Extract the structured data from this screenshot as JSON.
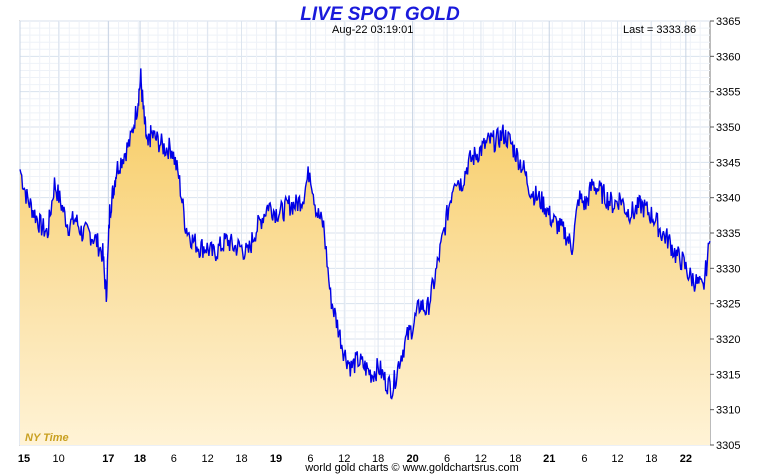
{
  "chart_data": {
    "type": "area",
    "title": "LIVE SPOT GOLD",
    "timestamp": "Aug-22  03:19:01",
    "last_label": "Last = 3333.86",
    "timezone_label": "NY Time",
    "footer": "world gold charts © www.goldchartsrus.com",
    "ylim": [
      3305,
      3365
    ],
    "y_ticks": [
      3305,
      3310,
      3315,
      3320,
      3325,
      3330,
      3335,
      3340,
      3345,
      3350,
      3355,
      3360,
      3365
    ],
    "x_ticks": [
      {
        "label": "15",
        "pos": 0.0,
        "bold": true
      },
      {
        "label": "10",
        "pos": 0.056,
        "bold": false
      },
      {
        "label": "17",
        "pos": 0.128,
        "bold": true
      },
      {
        "label": "18",
        "pos": 0.174,
        "bold": true
      },
      {
        "label": "6",
        "pos": 0.223,
        "bold": false
      },
      {
        "label": "12",
        "pos": 0.272,
        "bold": false
      },
      {
        "label": "18",
        "pos": 0.321,
        "bold": false
      },
      {
        "label": "19",
        "pos": 0.371,
        "bold": true
      },
      {
        "label": "6",
        "pos": 0.421,
        "bold": false
      },
      {
        "label": "12",
        "pos": 0.47,
        "bold": false
      },
      {
        "label": "18",
        "pos": 0.519,
        "bold": false
      },
      {
        "label": "20",
        "pos": 0.569,
        "bold": true
      },
      {
        "label": "6",
        "pos": 0.619,
        "bold": false
      },
      {
        "label": "12",
        "pos": 0.668,
        "bold": false
      },
      {
        "label": "18",
        "pos": 0.718,
        "bold": false
      },
      {
        "label": "21",
        "pos": 0.767,
        "bold": true
      },
      {
        "label": "6",
        "pos": 0.818,
        "bold": false
      },
      {
        "label": "12",
        "pos": 0.866,
        "bold": false
      },
      {
        "label": "18",
        "pos": 0.915,
        "bold": false
      },
      {
        "label": "22",
        "pos": 0.965,
        "bold": true
      }
    ],
    "series": [
      {
        "name": "Spot Gold",
        "x": [
          0.0,
          0.01,
          0.02,
          0.03,
          0.04,
          0.05,
          0.06,
          0.07,
          0.08,
          0.09,
          0.1,
          0.11,
          0.12,
          0.125,
          0.13,
          0.135,
          0.14,
          0.15,
          0.16,
          0.17,
          0.175,
          0.18,
          0.185,
          0.19,
          0.2,
          0.21,
          0.22,
          0.23,
          0.24,
          0.25,
          0.26,
          0.27,
          0.28,
          0.29,
          0.3,
          0.31,
          0.32,
          0.33,
          0.34,
          0.35,
          0.36,
          0.37,
          0.38,
          0.39,
          0.4,
          0.41,
          0.42,
          0.43,
          0.44,
          0.45,
          0.46,
          0.47,
          0.48,
          0.49,
          0.5,
          0.51,
          0.52,
          0.53,
          0.54,
          0.55,
          0.56,
          0.57,
          0.58,
          0.59,
          0.6,
          0.61,
          0.62,
          0.63,
          0.64,
          0.65,
          0.66,
          0.67,
          0.68,
          0.69,
          0.7,
          0.71,
          0.72,
          0.73,
          0.74,
          0.75,
          0.76,
          0.77,
          0.78,
          0.79,
          0.8,
          0.81,
          0.82,
          0.83,
          0.84,
          0.85,
          0.86,
          0.87,
          0.88,
          0.89,
          0.9,
          0.91,
          0.92,
          0.93,
          0.94,
          0.95,
          0.96,
          0.97,
          0.98,
          0.99,
          1.0
        ],
        "values": [
          3344,
          3340,
          3338,
          3336,
          3335,
          3342,
          3339,
          3336,
          3337,
          3335,
          3335,
          3334,
          3332,
          3326,
          3338,
          3341,
          3344,
          3346,
          3348,
          3353,
          3357,
          3351,
          3347,
          3349,
          3348,
          3347,
          3347,
          3343,
          3336,
          3334,
          3333,
          3333,
          3332,
          3333,
          3334,
          3333,
          3333,
          3332,
          3335,
          3337,
          3339,
          3338,
          3338,
          3339,
          3339,
          3340,
          3344,
          3338,
          3336,
          3326,
          3322,
          3318,
          3316,
          3317,
          3316,
          3315,
          3316,
          3314,
          3313,
          3317,
          3320,
          3322,
          3325,
          3324,
          3328,
          3333,
          3338,
          3343,
          3342,
          3345,
          3346,
          3347,
          3348,
          3348,
          3349,
          3348,
          3346,
          3344,
          3341,
          3340,
          3339,
          3337,
          3336,
          3335,
          3333,
          3340,
          3339,
          3342,
          3341,
          3340,
          3339,
          3340,
          3338,
          3338,
          3339,
          3338,
          3337,
          3335,
          3334,
          3332,
          3331,
          3329,
          3328,
          3327,
          3333.86
        ]
      }
    ]
  }
}
